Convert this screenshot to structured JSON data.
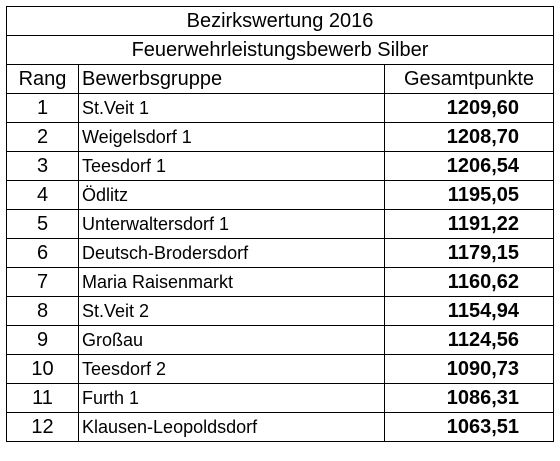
{
  "title": "Bezirkswertung 2016",
  "subtitle": "Feuerwehrleistungsbewerb Silber",
  "headers": {
    "rank": "Rang",
    "group": "Bewerbsgruppe",
    "points": "Gesamtpunkte"
  },
  "rows": [
    {
      "rank": "1",
      "group": "St.Veit 1",
      "points": "1209,60"
    },
    {
      "rank": "2",
      "group": "Weigelsdorf 1",
      "points": "1208,70"
    },
    {
      "rank": "3",
      "group": "Teesdorf 1",
      "points": "1206,54"
    },
    {
      "rank": "4",
      "group": "Ödlitz",
      "points": "1195,05"
    },
    {
      "rank": "5",
      "group": "Unterwaltersdorf 1",
      "points": "1191,22"
    },
    {
      "rank": "6",
      "group": "Deutsch-Brodersdorf",
      "points": "1179,15"
    },
    {
      "rank": "7",
      "group": "Maria Raisenmarkt",
      "points": "1160,62"
    },
    {
      "rank": "8",
      "group": "St.Veit 2",
      "points": "1154,94"
    },
    {
      "rank": "9",
      "group": "Großau",
      "points": "1124,56"
    },
    {
      "rank": "10",
      "group": "Teesdorf 2",
      "points": "1090,73"
    },
    {
      "rank": "11",
      "group": "Furth 1",
      "points": "1086,31"
    },
    {
      "rank": "12",
      "group": "Klausen-Leopoldsdorf",
      "points": "1063,51"
    }
  ]
}
